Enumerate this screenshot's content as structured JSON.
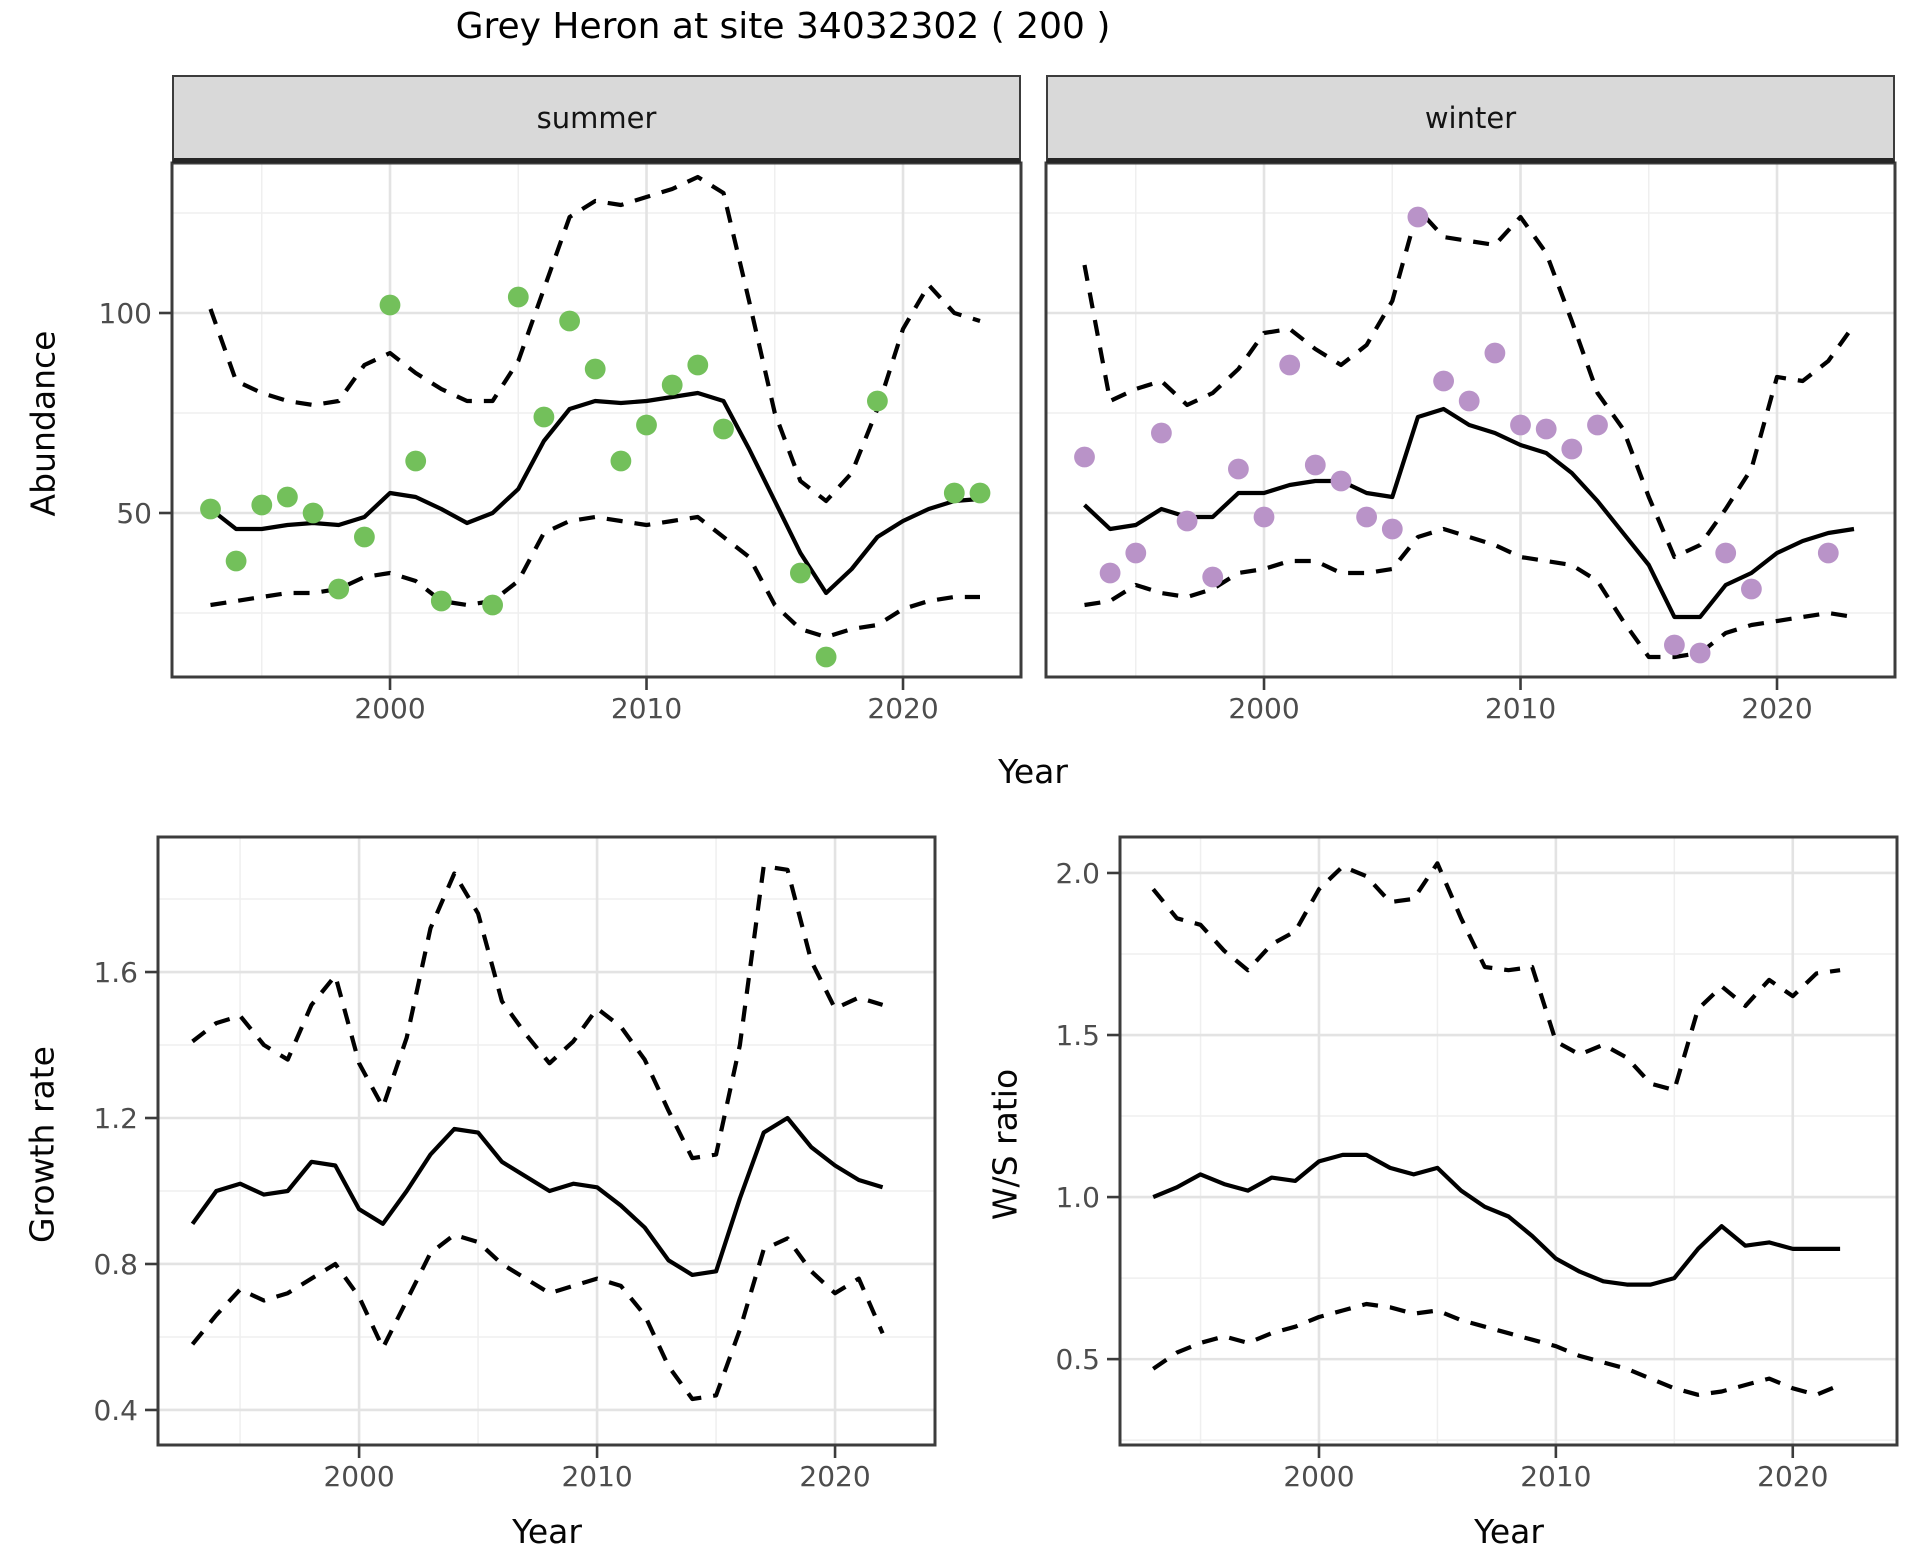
{
  "title": "Grey Heron at site 34032302 ( 200 )",
  "strips": [
    "summer",
    "winter"
  ],
  "axis_titles": {
    "abundance": "Abundance",
    "year": "Year",
    "growth": "Growth rate",
    "ws": "W/S ratio"
  },
  "colors": {
    "summer_point": "#73C05B",
    "winter_point": "#B993C8",
    "fit_line": "#000000",
    "ci_line": "#000000",
    "gridline_major": "#E3E3E3",
    "gridline_minor": "#EFEFEF",
    "strip_bg": "#D9D9D9",
    "panel_border": "#3C3C3C",
    "panel_bg": "#FFFFFF",
    "tick_text": "#4D4D4D"
  },
  "chart_data": [
    {
      "id": "abundance-summer",
      "type": "line",
      "facet": "summer",
      "ylabel": "Abundance",
      "xlabel": "Year",
      "xlim": [
        1991.5,
        2024.6
      ],
      "ylim": [
        9,
        137.5
      ],
      "xticks": [
        2000,
        2010,
        2020
      ],
      "xtick_labels": [
        "2000",
        "2010",
        "2020"
      ],
      "minor_xticks": [
        1995,
        2005,
        2015
      ],
      "yticks": [
        50,
        100
      ],
      "ytick_labels": [
        "50",
        "100"
      ],
      "minor_yticks": [
        25,
        75,
        125
      ],
      "show_ytick_labels": true,
      "years": [
        1993,
        1994,
        1995,
        1996,
        1997,
        1998,
        1999,
        2000,
        2001,
        2002,
        2003,
        2004,
        2005,
        2006,
        2007,
        2008,
        2009,
        2010,
        2011,
        2012,
        2013,
        2014,
        2015,
        2016,
        2017,
        2018,
        2019,
        2020,
        2021,
        2022,
        2023
      ],
      "fit": [
        51,
        46,
        46,
        47,
        47.5,
        47,
        49,
        55,
        54,
        51,
        47.5,
        50,
        56,
        68,
        76,
        78,
        77.5,
        78,
        79,
        80,
        78,
        66,
        53,
        40,
        30,
        36,
        44,
        48,
        51,
        53,
        53.5
      ],
      "upper_ci": [
        101,
        83,
        80,
        78,
        77,
        78,
        87,
        90,
        85,
        81,
        78,
        78,
        88,
        106,
        124,
        128,
        127,
        129,
        131,
        134,
        130,
        103,
        75,
        58,
        53,
        60,
        76,
        96,
        107,
        100,
        98
      ],
      "lower_ci": [
        27,
        28,
        29,
        30,
        30,
        31,
        34,
        35,
        33,
        28,
        27,
        28,
        33,
        45,
        48,
        49,
        48,
        47,
        48,
        49,
        44,
        39,
        27,
        21,
        19,
        21,
        22,
        26,
        28,
        29,
        29
      ],
      "points_years": [
        1993,
        1994,
        1995,
        1996,
        1997,
        1998,
        1999,
        2000,
        2001,
        2002,
        2004,
        2005,
        2006,
        2007,
        2008,
        2009,
        2010,
        2011,
        2012,
        2013,
        2016,
        2017,
        2019,
        2022,
        2023
      ],
      "points_values": [
        51,
        38,
        52,
        54,
        50,
        31,
        44,
        102,
        63,
        28,
        27,
        104,
        74,
        98,
        86,
        63,
        72,
        82,
        87,
        71,
        35,
        14,
        78,
        55,
        55
      ],
      "point_color": "#73C05B"
    },
    {
      "id": "abundance-winter",
      "type": "line",
      "facet": "winter",
      "ylabel": "Abundance",
      "xlabel": "Year",
      "xlim": [
        1991.5,
        2024.6
      ],
      "ylim": [
        9,
        137.5
      ],
      "xticks": [
        2000,
        2010,
        2020
      ],
      "xtick_labels": [
        "2000",
        "2010",
        "2020"
      ],
      "minor_xticks": [
        1995,
        2005,
        2015
      ],
      "yticks": [
        50,
        100
      ],
      "ytick_labels": [
        "50",
        "100"
      ],
      "minor_yticks": [
        25,
        75,
        125
      ],
      "show_ytick_labels": false,
      "years": [
        1993,
        1994,
        1995,
        1996,
        1997,
        1998,
        1999,
        2000,
        2001,
        2002,
        2003,
        2004,
        2005,
        2006,
        2007,
        2008,
        2009,
        2010,
        2011,
        2012,
        2013,
        2014,
        2015,
        2016,
        2017,
        2018,
        2019,
        2020,
        2021,
        2022,
        2023
      ],
      "fit": [
        52,
        46,
        47,
        51,
        49,
        49,
        55,
        55,
        57,
        58,
        58,
        55,
        54,
        74,
        76,
        72,
        70,
        67,
        65,
        60,
        53,
        45,
        37,
        24,
        24,
        32,
        35,
        40,
        43,
        45,
        46
      ],
      "upper_ci": [
        112,
        78,
        81,
        83,
        77,
        80,
        86,
        95,
        96,
        91,
        87,
        92,
        103,
        126,
        119,
        118,
        117,
        124,
        115,
        98,
        80,
        71,
        54,
        39,
        42,
        51,
        61,
        84,
        83,
        88,
        97
      ],
      "lower_ci": [
        27,
        28,
        32,
        30,
        29,
        31,
        35,
        36,
        38,
        38,
        35,
        35,
        36,
        44,
        46,
        44,
        42,
        39,
        38,
        37,
        33,
        23,
        14,
        14,
        15,
        20,
        22,
        23,
        24,
        25,
        24
      ],
      "points_years": [
        1993,
        1994,
        1995,
        1996,
        1997,
        1998,
        1999,
        2000,
        2001,
        2002,
        2003,
        2004,
        2005,
        2006,
        2007,
        2008,
        2009,
        2010,
        2011,
        2012,
        2013,
        2016,
        2017,
        2018,
        2019,
        2022
      ],
      "points_values": [
        64,
        35,
        40,
        70,
        48,
        34,
        61,
        49,
        87,
        62,
        58,
        49,
        46,
        124,
        83,
        78,
        90,
        72,
        71,
        66,
        72,
        17,
        15,
        40,
        31,
        40
      ],
      "point_color": "#B993C8"
    },
    {
      "id": "growth-rate",
      "type": "line",
      "facet": null,
      "ylabel": "Growth rate",
      "xlabel": "Year",
      "xlim": [
        1991.55,
        2024.2
      ],
      "ylim": [
        0.304,
        1.97
      ],
      "xticks": [
        2000,
        2010,
        2020
      ],
      "xtick_labels": [
        "2000",
        "2010",
        "2020"
      ],
      "minor_xticks": [
        1995,
        2005,
        2015
      ],
      "yticks": [
        0.4,
        0.8,
        1.2,
        1.6
      ],
      "ytick_labels": [
        "0.4",
        "0.8",
        "1.2",
        "1.6"
      ],
      "minor_yticks": [
        0.6,
        1.0,
        1.4,
        1.8
      ],
      "show_ytick_labels": true,
      "years": [
        1993,
        1994,
        1995,
        1996,
        1997,
        1998,
        1999,
        2000,
        2001,
        2002,
        2003,
        2004,
        2005,
        2006,
        2007,
        2008,
        2009,
        2010,
        2011,
        2012,
        2013,
        2014,
        2015,
        2016,
        2017,
        2018,
        2019,
        2020,
        2021,
        2022
      ],
      "fit": [
        0.91,
        1.0,
        1.02,
        0.99,
        1.0,
        1.08,
        1.07,
        0.95,
        0.91,
        1.0,
        1.1,
        1.17,
        1.16,
        1.08,
        1.04,
        1.0,
        1.02,
        1.01,
        0.96,
        0.9,
        0.81,
        0.77,
        0.78,
        0.98,
        1.16,
        1.2,
        1.12,
        1.07,
        1.03,
        1.01
      ],
      "upper_ci": [
        1.41,
        1.46,
        1.48,
        1.4,
        1.36,
        1.51,
        1.59,
        1.35,
        1.23,
        1.42,
        1.72,
        1.87,
        1.76,
        1.52,
        1.43,
        1.35,
        1.41,
        1.5,
        1.45,
        1.36,
        1.22,
        1.09,
        1.1,
        1.4,
        1.89,
        1.88,
        1.63,
        1.5,
        1.53,
        1.51
      ],
      "lower_ci": [
        0.58,
        0.66,
        0.73,
        0.7,
        0.72,
        0.76,
        0.8,
        0.71,
        0.57,
        0.7,
        0.83,
        0.88,
        0.86,
        0.8,
        0.76,
        0.72,
        0.74,
        0.76,
        0.74,
        0.66,
        0.52,
        0.43,
        0.44,
        0.62,
        0.84,
        0.87,
        0.78,
        0.72,
        0.76,
        0.61
      ],
      "points_years": [],
      "points_values": [],
      "point_color": null
    },
    {
      "id": "ws-ratio",
      "type": "line",
      "facet": null,
      "ylabel": "W/S ratio",
      "xlabel": "Year",
      "xlim": [
        1991.6,
        2024.4
      ],
      "ylim": [
        0.235,
        2.111
      ],
      "xticks": [
        2000,
        2010,
        2020
      ],
      "xtick_labels": [
        "2000",
        "2010",
        "2020"
      ],
      "minor_xticks": [
        1995,
        2005,
        2015
      ],
      "yticks": [
        0.5,
        1.0,
        1.5,
        2.0
      ],
      "ytick_labels": [
        "0.5",
        "1.0",
        "1.5",
        "2.0"
      ],
      "minor_yticks": [
        0.25,
        0.75,
        1.25,
        1.75
      ],
      "show_ytick_labels": true,
      "years": [
        1993,
        1994,
        1995,
        1996,
        1997,
        1998,
        1999,
        2000,
        2001,
        2002,
        2003,
        2004,
        2005,
        2006,
        2007,
        2008,
        2009,
        2010,
        2011,
        2012,
        2013,
        2014,
        2015,
        2016,
        2017,
        2018,
        2019,
        2020,
        2021,
        2022
      ],
      "fit": [
        1.0,
        1.03,
        1.07,
        1.04,
        1.02,
        1.06,
        1.05,
        1.11,
        1.13,
        1.13,
        1.09,
        1.07,
        1.09,
        1.02,
        0.97,
        0.94,
        0.88,
        0.81,
        0.77,
        0.74,
        0.73,
        0.73,
        0.75,
        0.84,
        0.91,
        0.85,
        0.86,
        0.84,
        0.84,
        0.84
      ],
      "upper_ci": [
        1.95,
        1.86,
        1.84,
        1.76,
        1.7,
        1.78,
        1.82,
        1.95,
        2.02,
        1.99,
        1.91,
        1.92,
        2.03,
        1.86,
        1.71,
        1.7,
        1.71,
        1.48,
        1.44,
        1.47,
        1.43,
        1.35,
        1.33,
        1.58,
        1.65,
        1.59,
        1.67,
        1.62,
        1.69,
        1.7
      ],
      "lower_ci": [
        0.47,
        0.52,
        0.55,
        0.57,
        0.55,
        0.58,
        0.6,
        0.63,
        0.65,
        0.67,
        0.66,
        0.64,
        0.65,
        0.62,
        0.6,
        0.58,
        0.56,
        0.54,
        0.51,
        0.49,
        0.47,
        0.44,
        0.41,
        0.39,
        0.4,
        0.42,
        0.44,
        0.41,
        0.39,
        0.42
      ],
      "points_years": [],
      "points_values": [],
      "point_color": null
    }
  ]
}
